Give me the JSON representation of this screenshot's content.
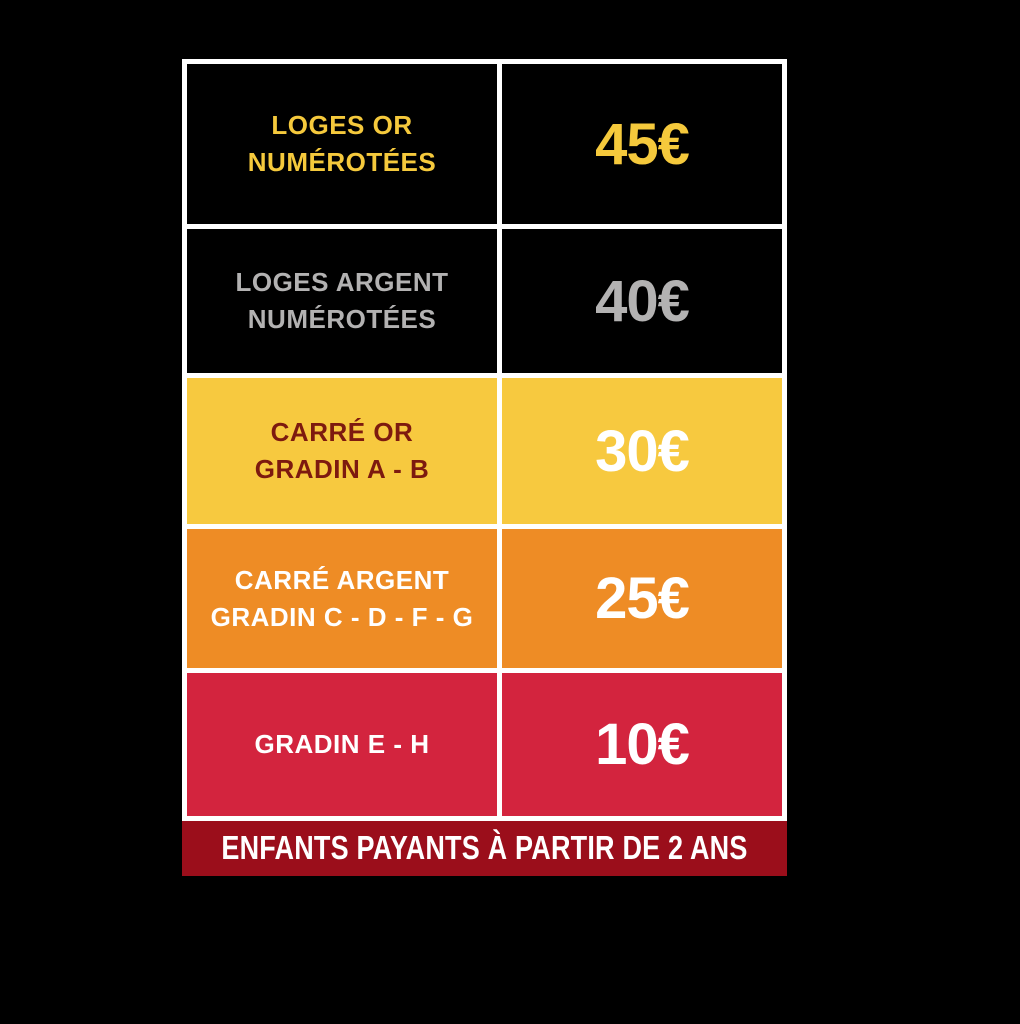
{
  "page": {
    "background": "#000000",
    "table_border_color": "#FFFFFF"
  },
  "chart_data": {
    "type": "table",
    "title": "",
    "rows": [
      {
        "category": "LOGES OR NUMÉROTÉES",
        "price_eur": 45
      },
      {
        "category": "LOGES ARGENT NUMÉROTÉES",
        "price_eur": 40
      },
      {
        "category": "CARRÉ OR GRADIN A - B",
        "price_eur": 30
      },
      {
        "category": "CARRÉ ARGENT GRADIN C - D - F - G",
        "price_eur": 25
      },
      {
        "category": "GRADIN E - H",
        "price_eur": 10
      }
    ],
    "note": "ENFANTS PAYANTS À PARTIR DE 2 ANS",
    "layout": "two columns: seat category | price, white grid borders, colored rows"
  },
  "table": {
    "rows": [
      {
        "line1": "LOGES OR",
        "line2": "NUMÉROTÉES",
        "price": "45€",
        "bg": "#000000",
        "label_color": "#F5C93C",
        "price_color": "#F5C93C"
      },
      {
        "line1": "LOGES ARGENT",
        "line2": "NUMÉROTÉES",
        "price": "40€",
        "bg": "#000000",
        "label_color": "#B3B2B2",
        "price_color": "#B3B2B2"
      },
      {
        "line1": "CARRÉ OR",
        "line2": "GRADIN A - B",
        "price": "30€",
        "bg": "#F7C93F",
        "label_color": "#7D1A0F",
        "price_color": "#FFFFFF"
      },
      {
        "line1": "CARRÉ ARGENT",
        "line2": "GRADIN C - D - F - G",
        "price": "25€",
        "bg": "#EE8C25",
        "label_color": "#FFFFFF",
        "price_color": "#FFFFFF"
      },
      {
        "line1": "GRADIN E - H",
        "line2": "",
        "price": "10€",
        "bg": "#D3243E",
        "label_color": "#FFFFFF",
        "price_color": "#FFFFFF"
      }
    ],
    "footer": {
      "text": "ENFANTS PAYANTS À PARTIR DE 2 ANS",
      "bg": "#9B0E1B",
      "color": "#FFFFFF"
    }
  }
}
